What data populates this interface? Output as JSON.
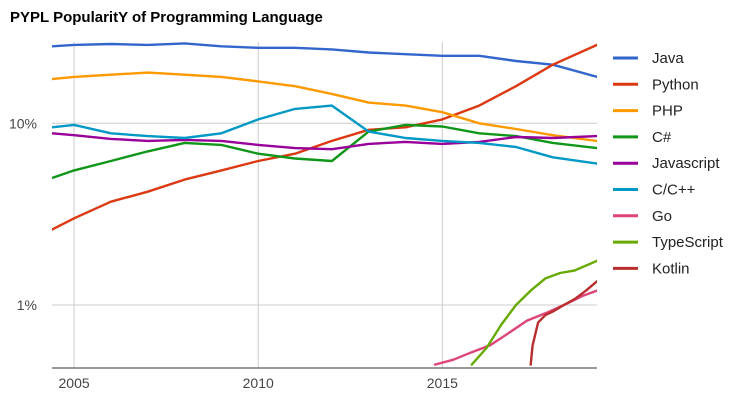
{
  "chart_data": {
    "type": "line",
    "title": "PYPL PopularitY of Programming Language",
    "xlabel": "",
    "ylabel": "",
    "yscale": "log",
    "xlim": [
      2004.4,
      2019.2
    ],
    "ylim": [
      0.45,
      28
    ],
    "x_ticks": [
      2005,
      2010,
      2015
    ],
    "x_tick_labels": [
      "2005",
      "2010",
      "2015"
    ],
    "y_ticks": [
      1,
      10
    ],
    "y_tick_labels": [
      "1%",
      "10%"
    ],
    "legend_position": "right",
    "series": [
      {
        "name": "Java",
        "color": "#3366cc",
        "x": [
          2004.4,
          2005,
          2006,
          2007,
          2008,
          2009,
          2010,
          2011,
          2012,
          2013,
          2014,
          2015,
          2016,
          2017,
          2018,
          2019.2
        ],
        "y": [
          26.5,
          27.0,
          27.3,
          27.0,
          27.5,
          26.5,
          26.0,
          26.0,
          25.5,
          24.5,
          24.0,
          23.5,
          23.5,
          22.0,
          21.0,
          18.0
        ]
      },
      {
        "name": "Python",
        "color": "#dc3912",
        "x": [
          2004.4,
          2005,
          2006,
          2007,
          2008,
          2009,
          2010,
          2011,
          2012,
          2013,
          2014,
          2015,
          2016,
          2017,
          2018,
          2019.2
        ],
        "y": [
          2.6,
          3.0,
          3.7,
          4.2,
          4.9,
          5.5,
          6.2,
          6.8,
          8.0,
          9.2,
          9.5,
          10.5,
          12.5,
          16.0,
          21.0,
          27.0
        ]
      },
      {
        "name": "PHP",
        "color": "#ff9900",
        "x": [
          2004.4,
          2005,
          2006,
          2007,
          2008,
          2009,
          2010,
          2011,
          2012,
          2013,
          2014,
          2015,
          2016,
          2017,
          2018,
          2019.2
        ],
        "y": [
          17.5,
          18.0,
          18.5,
          19.0,
          18.5,
          18.0,
          17.0,
          16.0,
          14.5,
          13.0,
          12.5,
          11.5,
          10.0,
          9.3,
          8.6,
          8.0
        ]
      },
      {
        "name": "C#",
        "color": "#109618",
        "x": [
          2004.4,
          2005,
          2006,
          2007,
          2008,
          2009,
          2010,
          2011,
          2012,
          2013,
          2014,
          2015,
          2016,
          2017,
          2018,
          2019.2
        ],
        "y": [
          5.0,
          5.5,
          6.2,
          7.0,
          7.8,
          7.6,
          6.8,
          6.4,
          6.2,
          9.0,
          9.8,
          9.6,
          8.8,
          8.5,
          7.8,
          7.3
        ]
      },
      {
        "name": "Javascript",
        "color": "#990099",
        "x": [
          2004.4,
          2005,
          2006,
          2007,
          2008,
          2009,
          2010,
          2011,
          2012,
          2013,
          2014,
          2015,
          2016,
          2017,
          2018,
          2019.2
        ],
        "y": [
          8.8,
          8.6,
          8.2,
          8.0,
          8.1,
          8.0,
          7.6,
          7.3,
          7.2,
          7.7,
          7.9,
          7.7,
          7.9,
          8.4,
          8.3,
          8.5
        ]
      },
      {
        "name": "C/C++",
        "color": "#0099c6",
        "x": [
          2004.4,
          2005,
          2006,
          2007,
          2008,
          2009,
          2010,
          2011,
          2012,
          2013,
          2014,
          2015,
          2016,
          2017,
          2018,
          2019.2
        ],
        "y": [
          9.5,
          9.8,
          8.8,
          8.5,
          8.3,
          8.8,
          10.5,
          12.0,
          12.5,
          9.0,
          8.3,
          8.0,
          7.8,
          7.4,
          6.5,
          6.0
        ]
      },
      {
        "name": "Go",
        "color": "#dd4477",
        "x": [
          2014.8,
          2015.3,
          2015.8,
          2016.3,
          2016.8,
          2017.3,
          2017.8,
          2018.3,
          2018.8,
          2019.2
        ],
        "y": [
          0.47,
          0.5,
          0.55,
          0.6,
          0.7,
          0.82,
          0.9,
          1.0,
          1.12,
          1.2
        ]
      },
      {
        "name": "TypeScript",
        "color": "#66aa00",
        "x": [
          2015.8,
          2016.2,
          2016.6,
          2017.0,
          2017.4,
          2017.8,
          2018.2,
          2018.6,
          2019.2
        ],
        "y": [
          0.47,
          0.58,
          0.78,
          1.0,
          1.2,
          1.4,
          1.5,
          1.55,
          1.75
        ]
      },
      {
        "name": "Kotlin",
        "color": "#b82e2e",
        "x": [
          2017.4,
          2017.45,
          2017.6,
          2017.8,
          2018.0,
          2018.3,
          2018.6,
          2018.9,
          2019.2
        ],
        "y": [
          0.47,
          0.6,
          0.8,
          0.88,
          0.92,
          1.0,
          1.08,
          1.2,
          1.35
        ]
      }
    ]
  }
}
